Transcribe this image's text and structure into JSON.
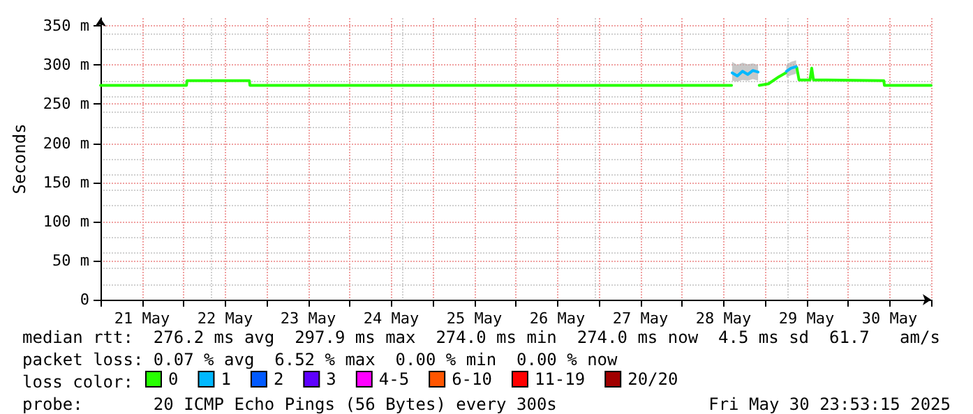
{
  "chart_data": {
    "type": "line",
    "ylabel": "Seconds",
    "legend_title": "loss color:",
    "legend": "bottom",
    "grid": true,
    "marker": "none",
    "line_style": "solid",
    "xlim": [
      "2025-05-21T00:00",
      "2025-05-31T00:00"
    ],
    "xticks": [
      {
        "value": "2025-05-21T00:00",
        "label": null
      },
      {
        "value": "2025-05-21T12:00",
        "label": "21 May"
      },
      {
        "value": "2025-05-22T00:00",
        "label": null
      },
      {
        "value": "2025-05-22T12:00",
        "label": "22 May"
      },
      {
        "value": "2025-05-23T00:00",
        "label": null
      },
      {
        "value": "2025-05-23T12:00",
        "label": "23 May"
      },
      {
        "value": "2025-05-24T00:00",
        "label": null
      },
      {
        "value": "2025-05-24T12:00",
        "label": "24 May"
      },
      {
        "value": "2025-05-25T00:00",
        "label": null
      },
      {
        "value": "2025-05-25T12:00",
        "label": "25 May"
      },
      {
        "value": "2025-05-26T00:00",
        "label": null
      },
      {
        "value": "2025-05-26T12:00",
        "label": "26 May"
      },
      {
        "value": "2025-05-27T00:00",
        "label": null
      },
      {
        "value": "2025-05-27T12:00",
        "label": "27 May"
      },
      {
        "value": "2025-05-28T00:00",
        "label": null
      },
      {
        "value": "2025-05-28T12:00",
        "label": "28 May"
      },
      {
        "value": "2025-05-29T00:00",
        "label": null
      },
      {
        "value": "2025-05-29T12:00",
        "label": "29 May"
      },
      {
        "value": "2025-05-30T00:00",
        "label": null
      },
      {
        "value": "2025-05-30T12:00",
        "label": "30 May"
      },
      {
        "value": "2025-05-31T00:00",
        "label": null
      }
    ],
    "ylim": [
      0,
      360
    ],
    "yticks": [
      0,
      {
        "value": 50,
        "label": "50 m"
      },
      {
        "value": 100,
        "label": "100 m"
      },
      {
        "value": 150,
        "label": "150 m"
      },
      {
        "value": 200,
        "label": "200 m"
      },
      {
        "value": 250,
        "label": "250 m"
      },
      {
        "value": 300,
        "label": "300 m"
      },
      {
        "value": 350,
        "label": "350 m"
      }
    ],
    "series": [
      {
        "name": "0",
        "color": "#26ff00",
        "x": [
          "2025-05-21T00:00",
          "2025-05-22T00:50",
          "2025-05-22T01:00",
          "2025-05-22T19:00",
          "2025-05-22T19:10",
          "2025-05-28T14:20",
          "2025-05-28T18:00",
          "2025-05-28T22:20",
          "2025-05-29T01:00",
          "2025-05-29T04:00",
          "2025-05-29T06:00",
          "2025-05-29T06:05",
          "2025-05-29T09:10",
          "2025-05-29T09:50",
          "2025-05-29T13:00",
          "2025-05-29T13:30",
          "2025-05-29T14:00",
          "2025-05-29T17:50",
          "2025-05-29T18:00",
          "2025-05-30T10:20",
          "2025-05-30T10:30",
          "2025-05-31T00:00"
        ],
        "values": [
          274,
          274,
          280,
          280,
          274,
          274,
          null,
          274,
          276,
          285,
          290,
          null,
          297,
          281,
          281,
          296,
          281,
          281,
          280,
          280,
          274,
          274
        ]
      },
      {
        "name": "1",
        "color": "#00b8ff",
        "x": [
          "2025-05-28T14:30",
          "2025-05-28T16:00",
          "2025-05-28T17:30",
          "2025-05-28T19:00",
          "2025-05-28T20:30",
          "2025-05-28T22:00",
          "2025-05-29T02:00",
          "2025-05-29T06:10",
          "2025-05-29T07:30",
          "2025-05-29T09:00"
        ],
        "values": [
          290,
          286,
          292,
          288,
          293,
          291,
          null,
          292,
          296,
          298
        ],
        "lower": [
          280,
          279,
          281,
          280,
          282,
          280,
          null,
          284,
          287,
          289
        ],
        "upper": [
          304,
          300,
          303,
          301,
          302,
          300,
          null,
          300,
          304,
          306
        ]
      },
      {
        "name": "2",
        "color": "#0059ff"
      },
      {
        "name": "3",
        "color": "#5e00ff"
      },
      {
        "name": "4-5",
        "color": "#ff00ff"
      },
      {
        "name": "6-10",
        "color": "#ff5500"
      },
      {
        "name": "11-19",
        "color": "#ff0000"
      },
      {
        "name": "20/20",
        "color": "#a10000"
      }
    ],
    "annotations": [
      "median rtt:  276.2 ms avg  297.9 ms max  274.0 ms min  274.0 ms now  4.5 ms sd  61.7   am/s",
      "packet loss: 0.07 % avg  6.52 % max  0.00 % min  0.00 % now",
      "probe:       20 ICMP Echo Pings (56 Bytes) every 300s",
      "Fri May 30 23:53:15 2025"
    ]
  }
}
